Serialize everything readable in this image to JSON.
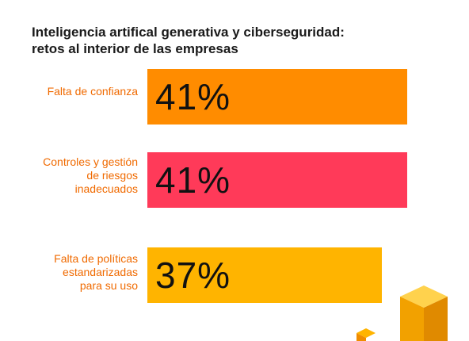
{
  "chart_data": {
    "type": "bar",
    "orientation": "horizontal",
    "title": [
      "Inteligencia artifical generativa y ciberseguridad:",
      "retos al interior de las empresas"
    ],
    "categories": [
      [
        "Falta de confianza"
      ],
      [
        "Controles y gestión",
        "de riesgos",
        "inadecuados"
      ],
      [
        "Falta de políticas",
        "estandarizadas",
        "para su uso"
      ]
    ],
    "values": [
      41,
      41,
      37
    ],
    "value_labels": [
      "41%",
      "41%",
      "37%"
    ],
    "bar_colors": [
      "#FF8C00",
      "#FF3A59",
      "#FFB400"
    ],
    "label_color": "#F06A00",
    "xlim": [
      0,
      50
    ]
  }
}
